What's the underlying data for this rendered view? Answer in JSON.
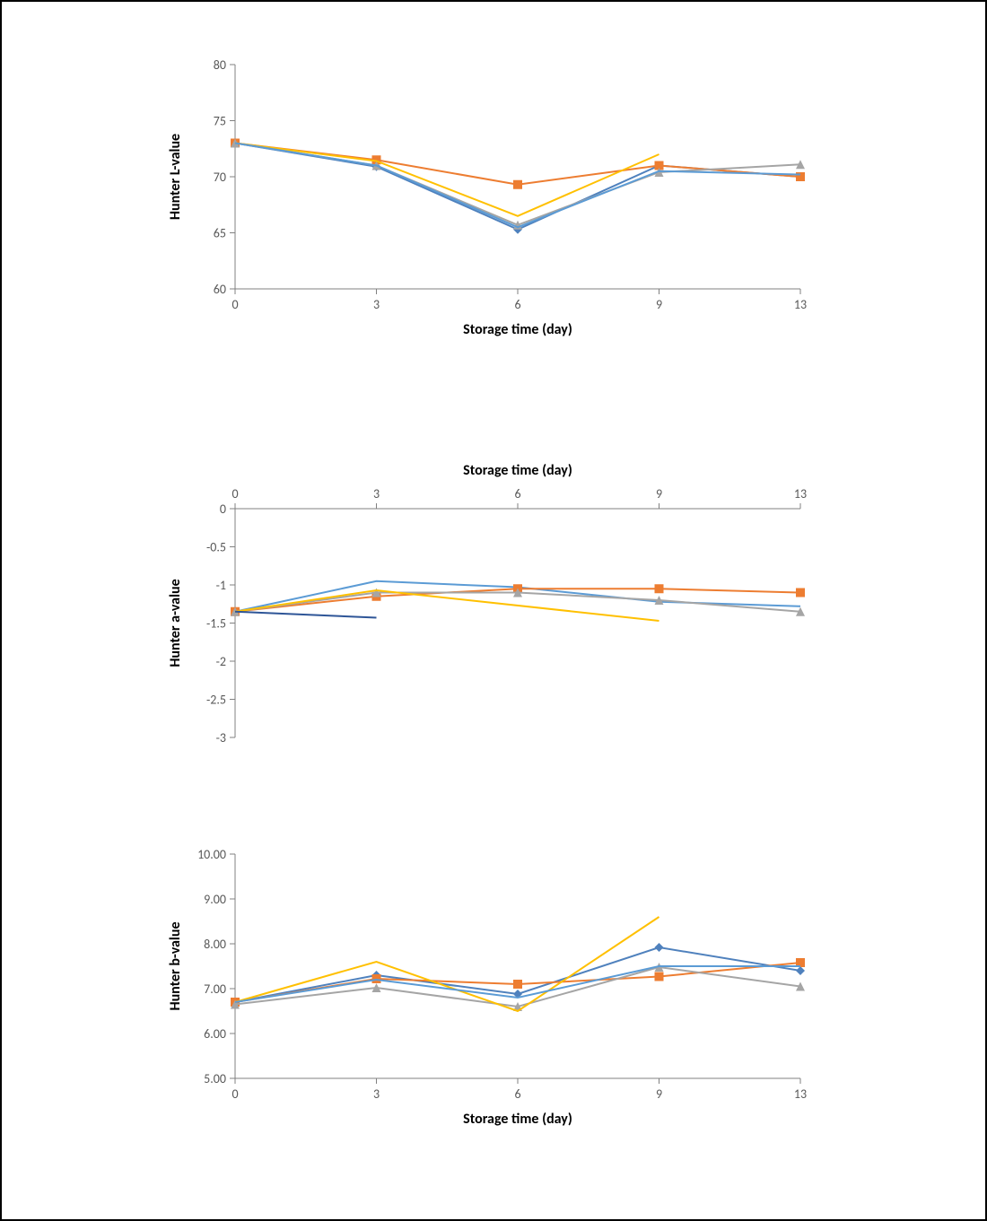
{
  "shared": {
    "x_categories": [
      "0",
      "3",
      "6",
      "9",
      "13"
    ],
    "x_positions": [
      0,
      1,
      2,
      3,
      4
    ],
    "xlabel": "Storage time (day)",
    "axis_color": "#808080",
    "tick_label_color": "#595959",
    "tick_fontsize": 14,
    "axis_label_fontsize": 16,
    "axis_label_color": "#000000",
    "line_width": 2,
    "marker_size": 5,
    "background_color": "#ffffff",
    "colors": {
      "blue": "#4f81bd",
      "orange": "#ed7d31",
      "gray": "#a5a5a5",
      "yellow": "#ffc000",
      "lightblue": "#5b9bd5",
      "darkblue": "#2e5597"
    }
  },
  "chart1": {
    "type": "line",
    "ylabel": "Hunter L-value",
    "ylim": [
      60,
      80
    ],
    "ytick_step": 5,
    "yticks": [
      "60",
      "65",
      "70",
      "75",
      "80"
    ],
    "xaxis_position": "bottom",
    "series": [
      {
        "color_key": "blue",
        "marker": "diamond",
        "y": [
          73.0,
          70.9,
          65.3,
          71.0,
          70.0
        ]
      },
      {
        "color_key": "orange",
        "marker": "square",
        "y": [
          73.0,
          71.5,
          69.3,
          71.0,
          70.0
        ]
      },
      {
        "color_key": "gray",
        "marker": "triangle",
        "y": [
          73.0,
          71.0,
          65.7,
          70.4,
          71.1
        ]
      },
      {
        "color_key": "yellow",
        "marker": "none",
        "y": [
          73.0,
          71.4,
          66.5,
          72.0,
          null
        ]
      },
      {
        "color_key": "lightblue",
        "marker": "none",
        "y": [
          73.0,
          71.0,
          65.5,
          70.5,
          70.2
        ]
      }
    ]
  },
  "chart2": {
    "type": "line",
    "ylabel": "Hunter a-value",
    "ylim": [
      -3,
      0
    ],
    "ytick_step": 0.5,
    "yticks": [
      "0",
      "-0.5",
      "-1",
      "-1.5",
      "-2",
      "-2.5",
      "-3"
    ],
    "xaxis_position": "top",
    "series": [
      {
        "color_key": "lightblue",
        "marker": "none",
        "y": [
          -1.35,
          -0.95,
          -1.03,
          -1.22,
          -1.28
        ]
      },
      {
        "color_key": "orange",
        "marker": "square",
        "y": [
          -1.35,
          -1.15,
          -1.05,
          -1.05,
          -1.1
        ]
      },
      {
        "color_key": "gray",
        "marker": "triangle",
        "y": [
          -1.35,
          -1.1,
          -1.1,
          -1.2,
          -1.35
        ]
      },
      {
        "color_key": "yellow",
        "marker": "none",
        "y": [
          -1.35,
          -1.07,
          null,
          -1.47,
          null
        ]
      },
      {
        "color_key": "darkblue",
        "marker": "none",
        "y": [
          -1.35,
          -1.43,
          null,
          null,
          null
        ]
      }
    ]
  },
  "chart3": {
    "type": "line",
    "ylabel": "Hunter b-value",
    "ylim": [
      5.0,
      10.0
    ],
    "ytick_step": 1.0,
    "yticks": [
      "5.00",
      "6.00",
      "7.00",
      "8.00",
      "9.00",
      "10.00"
    ],
    "xaxis_position": "bottom",
    "series": [
      {
        "color_key": "blue",
        "marker": "diamond",
        "y": [
          6.7,
          7.3,
          6.88,
          7.92,
          7.4
        ]
      },
      {
        "color_key": "orange",
        "marker": "square",
        "y": [
          6.7,
          7.22,
          7.1,
          7.27,
          7.58
        ]
      },
      {
        "color_key": "gray",
        "marker": "triangle",
        "y": [
          6.65,
          7.02,
          6.6,
          7.48,
          7.05
        ]
      },
      {
        "color_key": "yellow",
        "marker": "none",
        "y": [
          6.7,
          7.6,
          6.5,
          8.6,
          null
        ]
      },
      {
        "color_key": "lightblue",
        "marker": "none",
        "y": [
          6.7,
          7.2,
          6.8,
          7.5,
          7.5
        ]
      }
    ]
  }
}
